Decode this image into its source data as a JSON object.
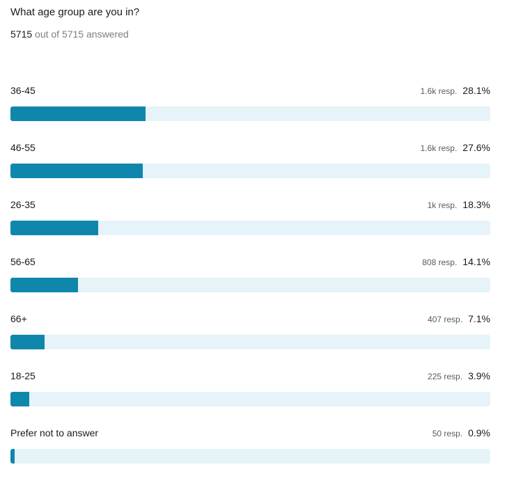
{
  "question": "What age group are you in?",
  "answered": {
    "count": "5715",
    "suffix": "out of 5715 answered"
  },
  "colors": {
    "bar_fill": "#0f87ad",
    "bar_track": "#e6f3f8"
  },
  "chart_data": {
    "type": "bar",
    "orientation": "horizontal",
    "categories": [
      "36-45",
      "46-55",
      "26-35",
      "56-65",
      "66+",
      "18-25",
      "Prefer not to answer"
    ],
    "values": [
      28.1,
      27.6,
      18.3,
      14.1,
      7.1,
      3.9,
      0.9
    ],
    "responses": [
      "1.6k resp.",
      "1.6k resp.",
      "1k resp.",
      "808 resp.",
      "407 resp.",
      "225 resp.",
      "50 resp."
    ],
    "percent_labels": [
      "28.1%",
      "27.6%",
      "18.3%",
      "14.1%",
      "7.1%",
      "3.9%",
      "0.9%"
    ],
    "xlim": [
      0,
      100
    ],
    "grid": false,
    "legend": "none"
  }
}
